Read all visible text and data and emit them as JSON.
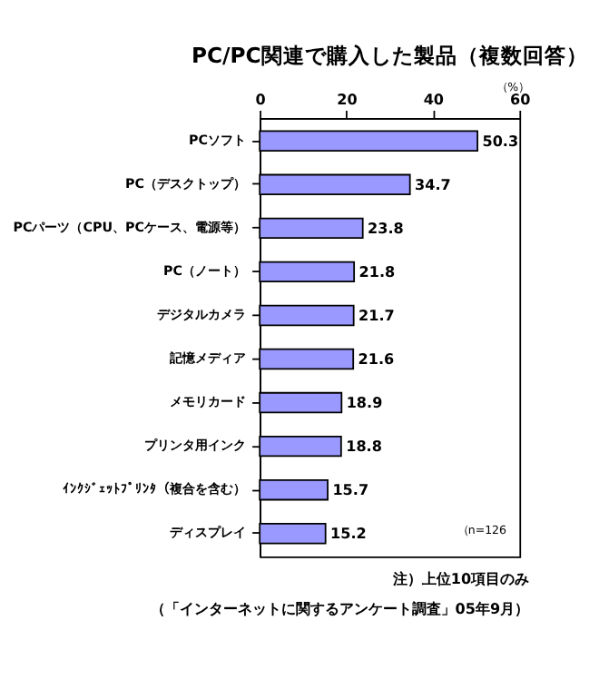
{
  "chart_data": {
    "type": "bar",
    "orientation": "horizontal",
    "title": "PC/PC関連で購入した製品（複数回答）",
    "xlabel": "（%）",
    "categories": [
      "PCソフト",
      "PC（デスクトップ）",
      "PCパーツ（CPU、PCケース、電源等）",
      "PC（ノート）",
      "デジタルカメラ",
      "記憶メディア",
      "メモリカード",
      "プリンタ用インク",
      "ｲﾝｸｼﾞｪｯﾄﾌﾟﾘﾝﾀ（複合を含む）",
      "ディスプレイ"
    ],
    "values": [
      50.3,
      34.7,
      23.8,
      21.8,
      21.7,
      21.6,
      18.9,
      18.8,
      15.7,
      15.2
    ],
    "color": "#9999ff",
    "xlim": [
      0,
      60
    ],
    "xticks": [
      0,
      20,
      40,
      60
    ],
    "grid": false,
    "data_labels": true,
    "annotations": [
      "（n=126",
      "注）上位10項目のみ",
      "（「インターネットに関するアンケート調査」05年9月）"
    ]
  }
}
